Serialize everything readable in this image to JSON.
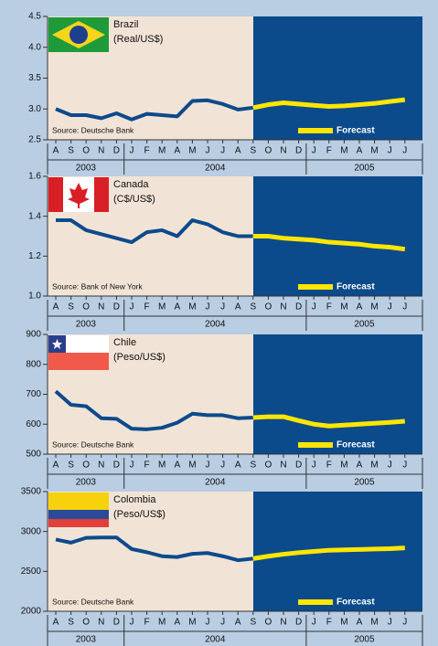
{
  "chart_data": [
    {
      "type": "line",
      "title": "Brazil",
      "subtitle": "(Real/US$)",
      "source": "Source: Deutsche Bank",
      "categories": [
        "A",
        "S",
        "O",
        "N",
        "D",
        "J",
        "F",
        "M",
        "A",
        "M",
        "J",
        "J",
        "A",
        "S",
        "O",
        "N",
        "D",
        "J",
        "F",
        "M",
        "A",
        "M",
        "J",
        "J"
      ],
      "year_groups": [
        {
          "label": "2003",
          "months": 5
        },
        {
          "label": "2004",
          "months": 12
        },
        {
          "label": "2005",
          "months": 7
        }
      ],
      "ylim": [
        2.5,
        4.5
      ],
      "yticks": [
        2.5,
        {
          "value": 3,
          "label": "3.0"
        },
        3.5,
        {
          "value": 4,
          "label": "4.0"
        },
        4.5
      ],
      "series": [
        {
          "color": "#0d4a8c",
          "values": [
            3.0,
            2.9,
            2.9,
            2.85,
            2.93,
            2.83,
            2.92,
            2.9,
            2.88,
            3.13,
            3.14,
            3.08,
            2.99,
            3.02,
            null,
            null,
            null,
            null,
            null,
            null,
            null,
            null,
            null,
            null
          ]
        },
        {
          "name": "Forecast",
          "color": "#ffe600",
          "values": [
            null,
            null,
            null,
            null,
            null,
            null,
            null,
            null,
            null,
            null,
            null,
            null,
            null,
            3.02,
            3.07,
            3.1,
            3.08,
            3.06,
            3.04,
            3.05,
            3.07,
            3.09,
            3.12,
            3.15
          ]
        }
      ]
    },
    {
      "type": "line",
      "title": "Canada",
      "subtitle": "(C$/US$)",
      "source": "Source: Bank of New York",
      "categories": [
        "A",
        "S",
        "O",
        "N",
        "D",
        "J",
        "F",
        "M",
        "A",
        "M",
        "J",
        "J",
        "A",
        "S",
        "O",
        "N",
        "D",
        "J",
        "F",
        "M",
        "A",
        "M",
        "J",
        "J"
      ],
      "year_groups": [
        {
          "label": "2003",
          "months": 5
        },
        {
          "label": "2004",
          "months": 12
        },
        {
          "label": "2005",
          "months": 7
        }
      ],
      "ylim": [
        1.0,
        1.6
      ],
      "yticks": [
        {
          "value": 1,
          "label": "1.0"
        },
        1.2,
        1.4,
        1.6
      ],
      "series": [
        {
          "color": "#0d4a8c",
          "values": [
            1.38,
            1.38,
            1.33,
            1.31,
            1.29,
            1.27,
            1.32,
            1.33,
            1.3,
            1.38,
            1.36,
            1.32,
            1.3,
            1.3,
            null,
            null,
            null,
            null,
            null,
            null,
            null,
            null,
            null,
            null
          ]
        },
        {
          "name": "Forecast",
          "color": "#ffe600",
          "values": [
            null,
            null,
            null,
            null,
            null,
            null,
            null,
            null,
            null,
            null,
            null,
            null,
            null,
            1.3,
            1.3,
            1.29,
            1.285,
            1.28,
            1.27,
            1.265,
            1.26,
            1.25,
            1.245,
            1.235
          ]
        }
      ]
    },
    {
      "type": "line",
      "title": "Chile",
      "subtitle": "(Peso/US$)",
      "source": "Source: Deutsche Bank",
      "categories": [
        "A",
        "S",
        "O",
        "N",
        "D",
        "J",
        "F",
        "M",
        "A",
        "M",
        "J",
        "J",
        "A",
        "S",
        "O",
        "N",
        "D",
        "J",
        "F",
        "M",
        "A",
        "M",
        "J",
        "J"
      ],
      "year_groups": [
        {
          "label": "2003",
          "months": 5
        },
        {
          "label": "2004",
          "months": 12
        },
        {
          "label": "2005",
          "months": 7
        }
      ],
      "ylim": [
        500,
        900
      ],
      "yticks": [
        500,
        600,
        700,
        800,
        900
      ],
      "series": [
        {
          "color": "#0d4a8c",
          "values": [
            710,
            665,
            660,
            620,
            618,
            585,
            583,
            588,
            605,
            635,
            630,
            630,
            620,
            622,
            null,
            null,
            null,
            null,
            null,
            null,
            null,
            null,
            null,
            null
          ]
        },
        {
          "name": "Forecast",
          "color": "#ffe600",
          "values": [
            null,
            null,
            null,
            null,
            null,
            null,
            null,
            null,
            null,
            null,
            null,
            null,
            null,
            622,
            625,
            625,
            612,
            600,
            594,
            597,
            600,
            603,
            606,
            610
          ]
        }
      ]
    },
    {
      "type": "line",
      "title": "Colombia",
      "subtitle": "(Peso/US$)",
      "source": "Source: Deutsche Bank",
      "categories": [
        "A",
        "S",
        "O",
        "N",
        "D",
        "J",
        "F",
        "M",
        "A",
        "M",
        "J",
        "J",
        "A",
        "S",
        "O",
        "N",
        "D",
        "J",
        "F",
        "M",
        "A",
        "M",
        "J",
        "J"
      ],
      "year_groups": [
        {
          "label": "2003",
          "months": 5
        },
        {
          "label": "2004",
          "months": 12
        },
        {
          "label": "2005",
          "months": 7
        }
      ],
      "ylim": [
        2000,
        3500
      ],
      "yticks": [
        2000,
        2500,
        3000,
        3500
      ],
      "series": [
        {
          "color": "#0d4a8c",
          "values": [
            2900,
            2860,
            2920,
            2925,
            2925,
            2780,
            2740,
            2690,
            2680,
            2720,
            2730,
            2690,
            2640,
            2660,
            null,
            null,
            null,
            null,
            null,
            null,
            null,
            null,
            null,
            null
          ]
        },
        {
          "name": "Forecast",
          "color": "#ffe600",
          "values": [
            null,
            null,
            null,
            null,
            null,
            null,
            null,
            null,
            null,
            null,
            null,
            null,
            null,
            2660,
            2690,
            2715,
            2735,
            2750,
            2765,
            2770,
            2775,
            2780,
            2785,
            2795
          ]
        }
      ]
    }
  ]
}
